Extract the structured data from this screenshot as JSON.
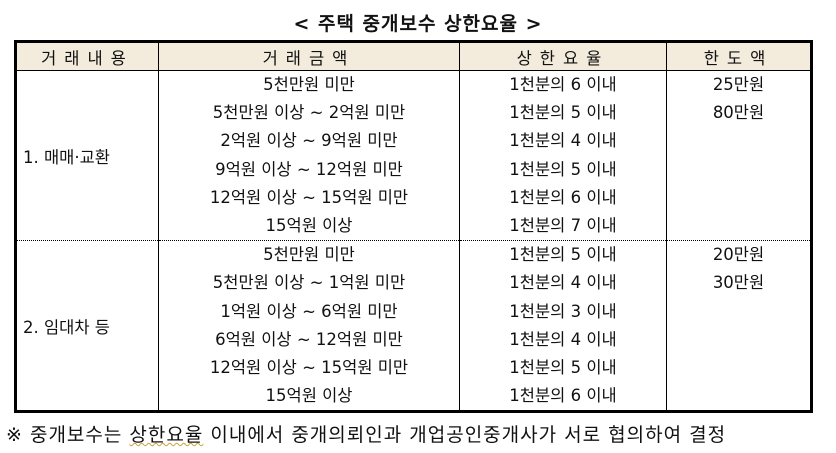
{
  "title": "< 주택 중개보수 상한요율 >",
  "table": {
    "headers": [
      "거래내용",
      "거래금액",
      "상한요율",
      "한도액"
    ],
    "groups": [
      {
        "kind": "1. 매매·교환",
        "rows": [
          {
            "amount": "5천만원 미만",
            "rate": "1천분의 6 이내",
            "limit": "25만원"
          },
          {
            "amount": "5천만원 이상 ~ 2억원 미만",
            "rate": "1천분의 5 이내",
            "limit": "80만원"
          },
          {
            "amount": "2억원 이상 ~ 9억원 미만",
            "rate": "1천분의 4 이내",
            "limit": ""
          },
          {
            "amount": "9억원 이상 ~ 12억원 미만",
            "rate": "1천분의 5 이내",
            "limit": ""
          },
          {
            "amount": "12억원 이상 ~ 15억원 미만",
            "rate": "1천분의 6 이내",
            "limit": ""
          },
          {
            "amount": "15억원 이상",
            "rate": "1천분의 7 이내",
            "limit": ""
          }
        ]
      },
      {
        "kind": "2. 임대차 등",
        "rows": [
          {
            "amount": "5천만원 미만",
            "rate": "1천분의 5 이내",
            "limit": "20만원"
          },
          {
            "amount": "5천만원 이상 ~ 1억원 미만",
            "rate": "1천분의 4 이내",
            "limit": "30만원"
          },
          {
            "amount": "1억원 이상 ~ 6억원 미만",
            "rate": "1천분의 3 이내",
            "limit": ""
          },
          {
            "amount": "6억원 이상 ~ 12억원 미만",
            "rate": "1천분의 4 이내",
            "limit": ""
          },
          {
            "amount": "12억원 이상 ~ 15억원 미만",
            "rate": "1천분의 5 이내",
            "limit": ""
          },
          {
            "amount": "15억원 이상",
            "rate": "1천분의 6 이내",
            "limit": ""
          }
        ]
      }
    ]
  },
  "footer": {
    "prefix": "※ 중개보수는 ",
    "underlined": "상한요율",
    "suffix": " 이내에서 중개의뢰인과 개업공인중개사가 서로 협의하여 결정"
  }
}
